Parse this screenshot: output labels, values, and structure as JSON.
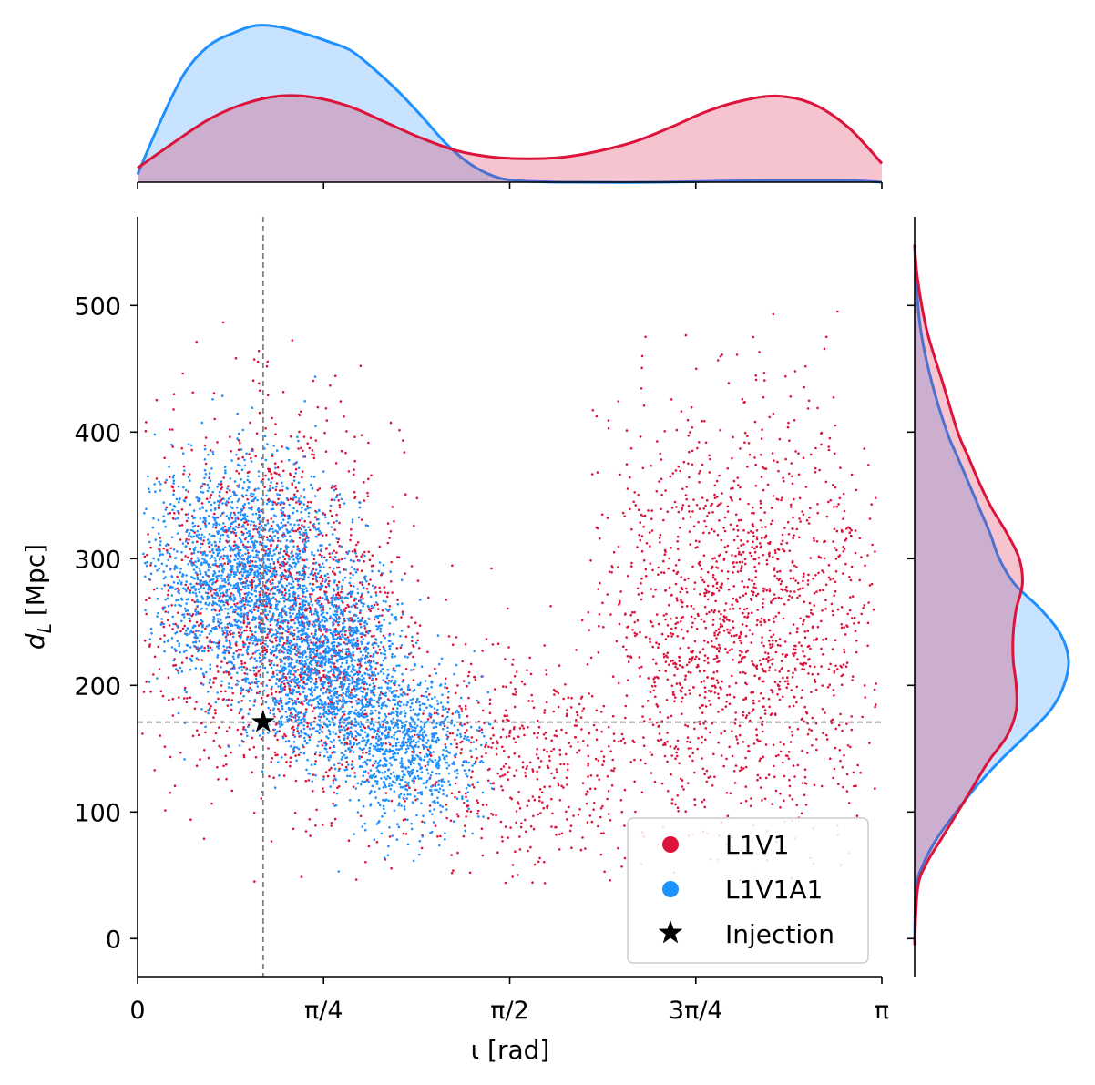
{
  "chart_data": {
    "type": "scatter",
    "subtype": "joint-plot with marginal KDE",
    "title": "",
    "xlabel": "ι [rad]",
    "ylabel_main": "d",
    "ylabel_sub": "L",
    "ylabel_unit": "[Mpc]",
    "xlim": [
      0,
      3.14159
    ],
    "ylim": [
      -30,
      570
    ],
    "x_ticks": [
      {
        "value": 0,
        "label": "0"
      },
      {
        "value": 0.7854,
        "label": "π/4"
      },
      {
        "value": 1.5708,
        "label": "π/2"
      },
      {
        "value": 2.3562,
        "label": "3π/4"
      },
      {
        "value": 3.14159,
        "label": "π"
      }
    ],
    "y_ticks": [
      {
        "value": 0,
        "label": "0"
      },
      {
        "value": 100,
        "label": "100"
      },
      {
        "value": 200,
        "label": "200"
      },
      {
        "value": 300,
        "label": "300"
      },
      {
        "value": 400,
        "label": "400"
      },
      {
        "value": 500,
        "label": "500"
      }
    ],
    "series": [
      {
        "name": "L1V1",
        "color": "#dc143c",
        "fill": "#f4b4c2",
        "clusters": [
          {
            "x_mean": 0.55,
            "x_sd": 0.28,
            "y_mean": 275,
            "y_sd": 70,
            "n": 1300,
            "x_min": 0.02,
            "x_max": 1.25
          },
          {
            "x_mean": 0.8,
            "x_sd": 0.22,
            "y_mean": 215,
            "y_sd": 55,
            "n": 500
          },
          {
            "x_mean": 1.6,
            "x_sd": 0.28,
            "y_mean": 135,
            "y_sd": 45,
            "n": 500
          },
          {
            "x_mean": 2.55,
            "x_sd": 0.32,
            "y_mean": 255,
            "y_sd": 80,
            "n": 1700,
            "x_min": 1.9,
            "x_max": 3.12
          }
        ],
        "marginal_x": {
          "x": [
            0,
            0.15,
            0.3,
            0.45,
            0.6,
            0.75,
            0.9,
            1.05,
            1.2,
            1.35,
            1.5,
            1.65,
            1.8,
            1.95,
            2.1,
            2.25,
            2.4,
            2.55,
            2.7,
            2.85,
            3.0,
            3.14159
          ],
          "density": [
            0.09,
            0.25,
            0.4,
            0.5,
            0.55,
            0.54,
            0.48,
            0.38,
            0.28,
            0.2,
            0.16,
            0.15,
            0.16,
            0.2,
            0.26,
            0.35,
            0.45,
            0.52,
            0.55,
            0.5,
            0.35,
            0.12
          ]
        },
        "marginal_y": {
          "y": [
            -5,
            40,
            60,
            80,
            100,
            120,
            140,
            160,
            180,
            200,
            220,
            240,
            260,
            280,
            300,
            320,
            340,
            360,
            380,
            400,
            440,
            480,
            520,
            548
          ],
          "density": [
            0.0,
            0.02,
            0.08,
            0.18,
            0.28,
            0.38,
            0.48,
            0.6,
            0.66,
            0.66,
            0.64,
            0.64,
            0.66,
            0.7,
            0.68,
            0.6,
            0.5,
            0.42,
            0.35,
            0.28,
            0.18,
            0.08,
            0.02,
            0.0
          ]
        }
      },
      {
        "name": "L1V1A1",
        "color": "#1e90ff",
        "fill": "#c5e2fb",
        "clusters": [
          {
            "x_mean": 0.45,
            "x_sd": 0.2,
            "y_mean": 285,
            "y_sd": 45,
            "n": 1900,
            "x_min": 0.02,
            "x_max": 1.2
          },
          {
            "x_mean": 0.8,
            "x_sd": 0.15,
            "y_mean": 215,
            "y_sd": 35,
            "n": 1400
          },
          {
            "x_mean": 1.12,
            "x_sd": 0.15,
            "y_mean": 150,
            "y_sd": 30,
            "n": 900,
            "x_max": 1.5
          }
        ],
        "marginal_x": {
          "x": [
            0,
            0.1,
            0.2,
            0.3,
            0.4,
            0.5,
            0.6,
            0.7,
            0.8,
            0.9,
            1.0,
            1.1,
            1.2,
            1.3,
            1.4,
            1.5,
            1.6,
            1.8,
            2.2,
            2.6,
            3.0,
            3.14159
          ],
          "density": [
            0.05,
            0.4,
            0.7,
            0.87,
            0.95,
            1.0,
            0.99,
            0.95,
            0.9,
            0.84,
            0.72,
            0.58,
            0.42,
            0.25,
            0.12,
            0.04,
            0.01,
            0.0,
            0.0,
            0.01,
            0.01,
            0.0
          ]
        },
        "marginal_y": {
          "y": [
            -5,
            40,
            60,
            80,
            100,
            120,
            140,
            160,
            180,
            200,
            220,
            240,
            260,
            280,
            300,
            320,
            340,
            360,
            380,
            400,
            440,
            480,
            520,
            548
          ],
          "density": [
            0.0,
            0.01,
            0.06,
            0.15,
            0.27,
            0.4,
            0.55,
            0.72,
            0.88,
            0.97,
            1.0,
            0.95,
            0.82,
            0.65,
            0.55,
            0.49,
            0.42,
            0.35,
            0.28,
            0.21,
            0.11,
            0.04,
            0.01,
            0.0
          ]
        }
      }
    ],
    "injection": {
      "name": "Injection",
      "x": 0.53,
      "y": 171,
      "color": "#000000"
    },
    "reference_lines": {
      "x": 0.53,
      "y": 171,
      "color": "#808080",
      "style": "dashed"
    },
    "legend": {
      "position": "lower-right",
      "entries": [
        "L1V1",
        "L1V1A1",
        "Injection"
      ]
    },
    "grid": false
  }
}
